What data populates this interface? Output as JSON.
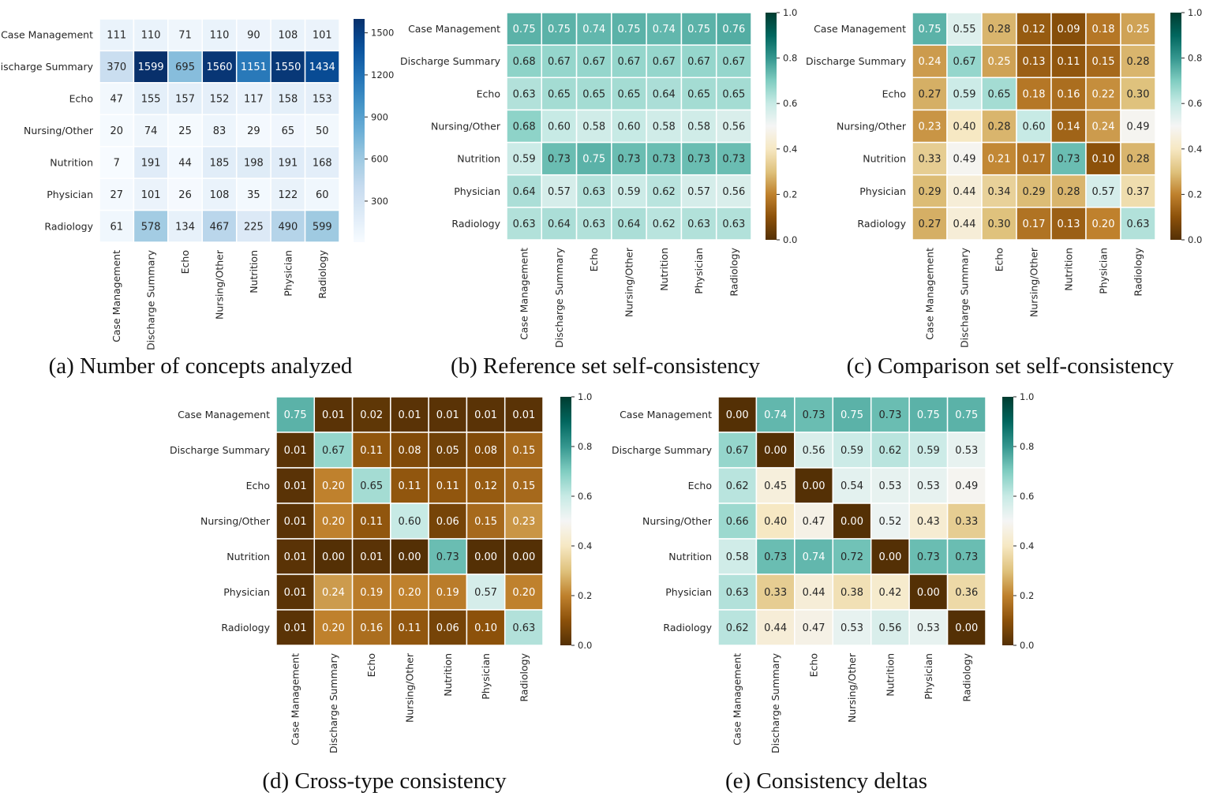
{
  "chart_data": [
    {
      "type": "heatmap",
      "caption": "(a) Number of concepts analyzed",
      "colormap": "Blues",
      "rows": [
        "Case Management",
        "Discharge Summary",
        "Echo",
        "Nursing/Other",
        "Nutrition",
        "Physician",
        "Radiology"
      ],
      "columns": [
        "Case Management",
        "Discharge Summary",
        "Echo",
        "Nursing/Other",
        "Nutrition",
        "Physician",
        "Radiology"
      ],
      "values": [
        [
          111,
          110,
          71,
          110,
          90,
          108,
          101
        ],
        [
          370,
          1599,
          695,
          1560,
          1151,
          1550,
          1434
        ],
        [
          47,
          155,
          157,
          152,
          117,
          158,
          153
        ],
        [
          20,
          74,
          25,
          83,
          29,
          65,
          50
        ],
        [
          7,
          191,
          44,
          185,
          198,
          191,
          168
        ],
        [
          27,
          101,
          26,
          108,
          35,
          122,
          60
        ],
        [
          61,
          578,
          134,
          467,
          225,
          490,
          599
        ]
      ],
      "colorbar_range": [
        7,
        1599
      ],
      "colorbar_ticks": [
        300,
        600,
        900,
        1200,
        1500
      ]
    },
    {
      "type": "heatmap",
      "caption": "(b) Reference set self-consistency",
      "colormap": "BrBG",
      "rows": [
        "Case Management",
        "Discharge Summary",
        "Echo",
        "Nursing/Other",
        "Nutrition",
        "Physician",
        "Radiology"
      ],
      "columns": [
        "Case Management",
        "Discharge Summary",
        "Echo",
        "Nursing/Other",
        "Nutrition",
        "Physician",
        "Radiology"
      ],
      "values": [
        [
          0.75,
          0.75,
          0.74,
          0.75,
          0.74,
          0.75,
          0.76
        ],
        [
          0.68,
          0.67,
          0.67,
          0.67,
          0.67,
          0.67,
          0.67
        ],
        [
          0.63,
          0.65,
          0.65,
          0.65,
          0.64,
          0.65,
          0.65
        ],
        [
          0.68,
          0.6,
          0.58,
          0.6,
          0.58,
          0.58,
          0.56
        ],
        [
          0.59,
          0.73,
          0.75,
          0.73,
          0.73,
          0.73,
          0.73
        ],
        [
          0.64,
          0.57,
          0.63,
          0.59,
          0.62,
          0.57,
          0.56
        ],
        [
          0.63,
          0.64,
          0.63,
          0.64,
          0.62,
          0.63,
          0.63
        ]
      ],
      "colorbar_range": [
        0,
        1
      ],
      "colorbar_ticks": [
        0.0,
        0.2,
        0.4,
        0.6,
        0.8,
        1.0
      ]
    },
    {
      "type": "heatmap",
      "caption": "(c) Comparison set self-consistency",
      "colormap": "BrBG",
      "rows": [
        "Case Management",
        "Discharge Summary",
        "Echo",
        "Nursing/Other",
        "Nutrition",
        "Physician",
        "Radiology"
      ],
      "columns": [
        "Case Management",
        "Discharge Summary",
        "Echo",
        "Nursing/Other",
        "Nutrition",
        "Physician",
        "Radiology"
      ],
      "values": [
        [
          0.75,
          0.55,
          0.28,
          0.12,
          0.09,
          0.18,
          0.25
        ],
        [
          0.24,
          0.67,
          0.25,
          0.13,
          0.11,
          0.15,
          0.28
        ],
        [
          0.27,
          0.59,
          0.65,
          0.18,
          0.16,
          0.22,
          0.3
        ],
        [
          0.23,
          0.4,
          0.28,
          0.6,
          0.14,
          0.24,
          0.49
        ],
        [
          0.33,
          0.49,
          0.21,
          0.17,
          0.73,
          0.1,
          0.28
        ],
        [
          0.29,
          0.44,
          0.34,
          0.29,
          0.28,
          0.57,
          0.37
        ],
        [
          0.27,
          0.44,
          0.3,
          0.17,
          0.13,
          0.2,
          0.63
        ]
      ],
      "colorbar_range": [
        0,
        1
      ],
      "colorbar_ticks": [
        0.0,
        0.2,
        0.4,
        0.6,
        0.8,
        1.0
      ]
    },
    {
      "type": "heatmap",
      "caption": "(d) Cross-type consistency",
      "colormap": "BrBG",
      "rows": [
        "Case Management",
        "Discharge Summary",
        "Echo",
        "Nursing/Other",
        "Nutrition",
        "Physician",
        "Radiology"
      ],
      "columns": [
        "Case Management",
        "Discharge Summary",
        "Echo",
        "Nursing/Other",
        "Nutrition",
        "Physician",
        "Radiology"
      ],
      "values": [
        [
          0.75,
          0.01,
          0.02,
          0.01,
          0.01,
          0.01,
          0.01
        ],
        [
          0.01,
          0.67,
          0.11,
          0.08,
          0.05,
          0.08,
          0.15
        ],
        [
          0.01,
          0.2,
          0.65,
          0.11,
          0.11,
          0.12,
          0.15
        ],
        [
          0.01,
          0.2,
          0.11,
          0.6,
          0.06,
          0.15,
          0.23
        ],
        [
          0.01,
          0.0,
          0.01,
          0.0,
          0.73,
          0.0,
          0.0
        ],
        [
          0.01,
          0.24,
          0.19,
          0.2,
          0.19,
          0.57,
          0.2
        ],
        [
          0.01,
          0.2,
          0.16,
          0.11,
          0.06,
          0.1,
          0.63
        ]
      ],
      "colorbar_range": [
        0,
        1
      ],
      "colorbar_ticks": [
        0.0,
        0.2,
        0.4,
        0.6,
        0.8,
        1.0
      ]
    },
    {
      "type": "heatmap",
      "caption": "(e) Consistency deltas",
      "colormap": "BrBG",
      "rows": [
        "Case Management",
        "Discharge Summary",
        "Echo",
        "Nursing/Other",
        "Nutrition",
        "Physician",
        "Radiology"
      ],
      "columns": [
        "Case Management",
        "Discharge Summary",
        "Echo",
        "Nursing/Other",
        "Nutrition",
        "Physician",
        "Radiology"
      ],
      "values": [
        [
          0.0,
          0.74,
          0.73,
          0.75,
          0.73,
          0.75,
          0.75
        ],
        [
          0.67,
          0.0,
          0.56,
          0.59,
          0.62,
          0.59,
          0.53
        ],
        [
          0.62,
          0.45,
          0.0,
          0.54,
          0.53,
          0.53,
          0.49
        ],
        [
          0.66,
          0.4,
          0.47,
          0.0,
          0.52,
          0.43,
          0.33
        ],
        [
          0.58,
          0.73,
          0.74,
          0.72,
          0.0,
          0.73,
          0.73
        ],
        [
          0.63,
          0.33,
          0.44,
          0.38,
          0.42,
          0.0,
          0.36
        ],
        [
          0.62,
          0.44,
          0.47,
          0.53,
          0.56,
          0.53,
          0.0
        ]
      ],
      "colorbar_range": [
        0,
        1
      ],
      "colorbar_ticks": [
        0.0,
        0.2,
        0.4,
        0.6,
        0.8,
        1.0
      ]
    }
  ]
}
